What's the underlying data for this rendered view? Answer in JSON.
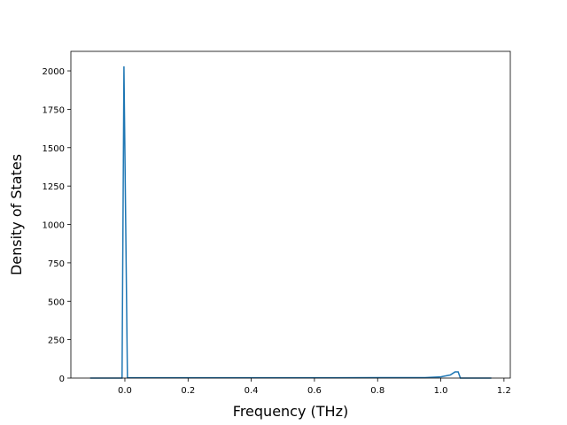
{
  "chart_data": {
    "type": "line",
    "x_label": "Frequency (THz)",
    "y_label": "Density of States",
    "x": [
      -0.11,
      -0.009,
      -0.003,
      0.008,
      0.2,
      0.4,
      0.6,
      0.8,
      0.95,
      1.0,
      1.03,
      1.045,
      1.055,
      1.062,
      1.16
    ],
    "series": [
      {
        "name": "DOS",
        "color": "#1f77b4",
        "values": [
          0,
          0,
          2030,
          2,
          2,
          2,
          2,
          3,
          3,
          8,
          20,
          40,
          40,
          0,
          0
        ]
      }
    ],
    "xlim": [
      -0.171,
      1.22
    ],
    "xticks": [
      {
        "value": 0,
        "label": "0.0"
      },
      0.2,
      0.4,
      0.6,
      0.8,
      {
        "value": 1,
        "label": "1.0"
      },
      1.2
    ],
    "ylim": [
      0,
      2127
    ],
    "yticks": [
      0,
      250,
      500,
      750,
      1000,
      1250,
      1500,
      1750,
      2000
    ]
  }
}
